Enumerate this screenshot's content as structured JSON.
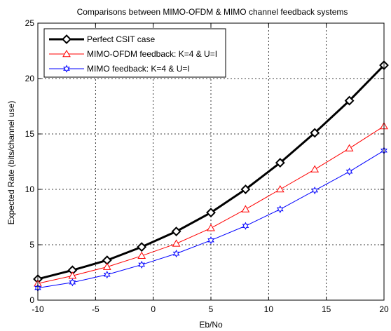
{
  "chart_data": {
    "type": "line",
    "title": "Comparisons between MIMO-OFDM & MIMO channel feedback systems",
    "xlabel": "Eb/No",
    "ylabel": "Expected Rate (bits/channel use)",
    "xlim": [
      -10,
      20
    ],
    "ylim": [
      0,
      25
    ],
    "xticks": [
      "-10",
      "-5",
      "0",
      "5",
      "10",
      "15",
      "20"
    ],
    "yticks": [
      "0",
      "5",
      "10",
      "15",
      "20",
      "25"
    ],
    "grid": true,
    "legend_position": "top-left",
    "x": [
      -10,
      -7,
      -4,
      -1,
      2,
      5,
      8,
      11,
      14,
      17,
      20
    ],
    "series": [
      {
        "name": "Perfect CSIT case",
        "color": "#000000",
        "marker": "diamond",
        "values": [
          1.9,
          2.7,
          3.6,
          4.8,
          6.2,
          7.9,
          10.0,
          12.4,
          15.1,
          18.0,
          21.2
        ]
      },
      {
        "name": "MIMO-OFDM feedback: K=4 & U=I",
        "color": "#ff0000",
        "marker": "triangle",
        "values": [
          1.5,
          2.2,
          3.0,
          4.0,
          5.1,
          6.5,
          8.2,
          10.0,
          11.8,
          13.7,
          15.7
        ]
      },
      {
        "name": "MIMO feedback: K=4 & U=I",
        "color": "#0000ff",
        "marker": "hexagram",
        "values": [
          1.1,
          1.6,
          2.3,
          3.2,
          4.2,
          5.4,
          6.7,
          8.2,
          9.9,
          11.6,
          13.5
        ]
      }
    ]
  }
}
